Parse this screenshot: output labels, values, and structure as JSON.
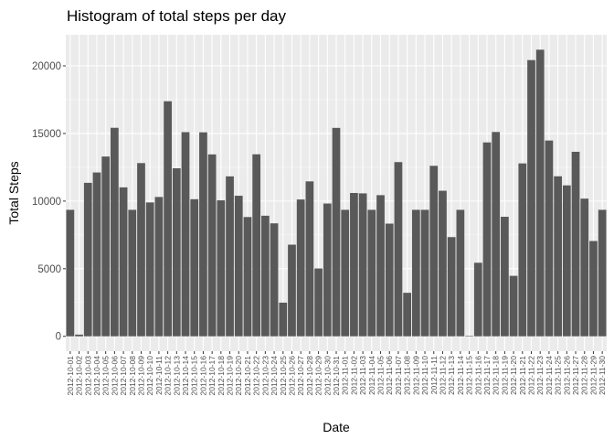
{
  "chart_data": {
    "type": "bar",
    "title": "Histogram of total steps per day",
    "xlabel": "Date",
    "ylabel": "Total Steps",
    "ylim": [
      -1100,
      22300
    ],
    "yticks": [
      0,
      5000,
      10000,
      15000,
      20000
    ],
    "grid": true,
    "legend": "none",
    "colors": {
      "panel_background": "#ebebeb",
      "grid_major": "#ffffff",
      "bar_fill": "#595959",
      "tick_text": "#4d4d4d"
    },
    "categories": [
      "2012-10-01",
      "2012-10-02",
      "2012-10-03",
      "2012-10-04",
      "2012-10-05",
      "2012-10-06",
      "2012-10-07",
      "2012-10-08",
      "2012-10-09",
      "2012-10-10",
      "2012-10-11",
      "2012-10-12",
      "2012-10-13",
      "2012-10-14",
      "2012-10-15",
      "2012-10-16",
      "2012-10-17",
      "2012-10-18",
      "2012-10-19",
      "2012-10-20",
      "2012-10-21",
      "2012-10-22",
      "2012-10-23",
      "2012-10-24",
      "2012-10-25",
      "2012-10-26",
      "2012-10-27",
      "2012-10-28",
      "2012-10-29",
      "2012-10-30",
      "2012-10-31",
      "2012-11-01",
      "2012-11-02",
      "2012-11-03",
      "2012-11-04",
      "2012-11-05",
      "2012-11-06",
      "2012-11-07",
      "2012-11-08",
      "2012-11-09",
      "2012-11-10",
      "2012-11-11",
      "2012-11-12",
      "2012-11-13",
      "2012-11-14",
      "2012-11-15",
      "2012-11-16",
      "2012-11-17",
      "2012-11-18",
      "2012-11-19",
      "2012-11-20",
      "2012-11-21",
      "2012-11-22",
      "2012-11-23",
      "2012-11-24",
      "2012-11-25",
      "2012-11-26",
      "2012-11-27",
      "2012-11-28",
      "2012-11-29",
      "2012-11-30"
    ],
    "values": [
      9354,
      126,
      11352,
      12116,
      13294,
      15420,
      11015,
      9354,
      12811,
      9900,
      10304,
      17382,
      12426,
      15098,
      10139,
      15084,
      13452,
      10056,
      11829,
      10395,
      8821,
      13460,
      8918,
      8355,
      2492,
      6778,
      10119,
      11458,
      5018,
      9819,
      15414,
      9354,
      10600,
      10571,
      9354,
      10439,
      8334,
      12883,
      3219,
      9354,
      9354,
      12608,
      10765,
      7336,
      9354,
      41,
      5441,
      14339,
      15110,
      8841,
      4472,
      12787,
      20427,
      21194,
      14478,
      11834,
      11162,
      13646,
      10183,
      7047,
      9354
    ]
  }
}
